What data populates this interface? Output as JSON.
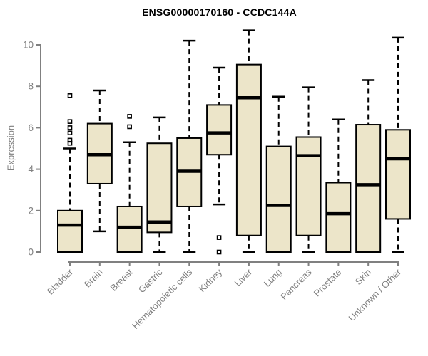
{
  "title": "ENSG00000170160 - CCDC144A",
  "colors": {
    "background": "#ffffff",
    "box_fill": "#ece5c9",
    "box_border": "#000000",
    "median_line": "#000000",
    "whisker": "#000000",
    "outlier": "#000000",
    "axis_line": "#808080",
    "axis_text": "#808080",
    "title_text": "#000000"
  },
  "chart_data": {
    "type": "boxplot",
    "title": "ENSG00000170160 - CCDC144A",
    "xlabel": "",
    "ylabel": "Expression",
    "ylim": [
      0,
      10
    ],
    "yticks": [
      0,
      2,
      4,
      6,
      8,
      10
    ],
    "grid": false,
    "legend": "none",
    "x_label_rotation_deg": 45,
    "categories": [
      "Bladder",
      "Brain",
      "Breast",
      "Gastric",
      "Hematopoietic cells",
      "Kidney",
      "Liver",
      "Lung",
      "Pancreas",
      "Prostate",
      "Skin",
      "Unknown / Other"
    ],
    "series": [
      {
        "label": "Bladder",
        "whisker_low": 0,
        "q1": 0,
        "median": 1.3,
        "q3": 2.0,
        "whisker_high": 5.0,
        "outliers": [
          7.55,
          6.3,
          6.0,
          5.75,
          5.4,
          5.25
        ]
      },
      {
        "label": "Brain",
        "whisker_low": 1.0,
        "q1": 3.3,
        "median": 4.7,
        "q3": 6.2,
        "whisker_high": 7.8,
        "outliers": []
      },
      {
        "label": "Breast",
        "whisker_low": 0,
        "q1": 0,
        "median": 1.2,
        "q3": 2.2,
        "whisker_high": 5.3,
        "outliers": [
          6.55,
          6.05
        ]
      },
      {
        "label": "Gastric",
        "whisker_low": 0,
        "q1": 0.95,
        "median": 1.45,
        "q3": 5.25,
        "whisker_high": 6.5,
        "outliers": []
      },
      {
        "label": "Hematopoietic cells",
        "whisker_low": 0,
        "q1": 2.2,
        "median": 3.9,
        "q3": 5.5,
        "whisker_high": 10.2,
        "outliers": []
      },
      {
        "label": "Kidney",
        "whisker_low": 2.3,
        "q1": 4.7,
        "median": 5.75,
        "q3": 7.1,
        "whisker_high": 8.9,
        "outliers": [
          0.7,
          0.0
        ]
      },
      {
        "label": "Liver",
        "whisker_low": 0,
        "q1": 0.8,
        "median": 7.45,
        "q3": 9.05,
        "whisker_high": 10.7,
        "outliers": []
      },
      {
        "label": "Lung",
        "whisker_low": 0,
        "q1": 0,
        "median": 2.25,
        "q3": 5.1,
        "whisker_high": 7.5,
        "outliers": []
      },
      {
        "label": "Pancreas",
        "whisker_low": 0,
        "q1": 0.8,
        "median": 4.65,
        "q3": 5.55,
        "whisker_high": 7.95,
        "outliers": []
      },
      {
        "label": "Prostate",
        "whisker_low": 0,
        "q1": 0,
        "median": 1.85,
        "q3": 3.35,
        "whisker_high": 6.4,
        "outliers": []
      },
      {
        "label": "Skin",
        "whisker_low": 0,
        "q1": 0,
        "median": 3.25,
        "q3": 6.15,
        "whisker_high": 8.3,
        "outliers": []
      },
      {
        "label": "Unknown / Other",
        "whisker_low": 0,
        "q1": 1.6,
        "median": 4.5,
        "q3": 5.9,
        "whisker_high": 10.35,
        "outliers": []
      }
    ]
  }
}
